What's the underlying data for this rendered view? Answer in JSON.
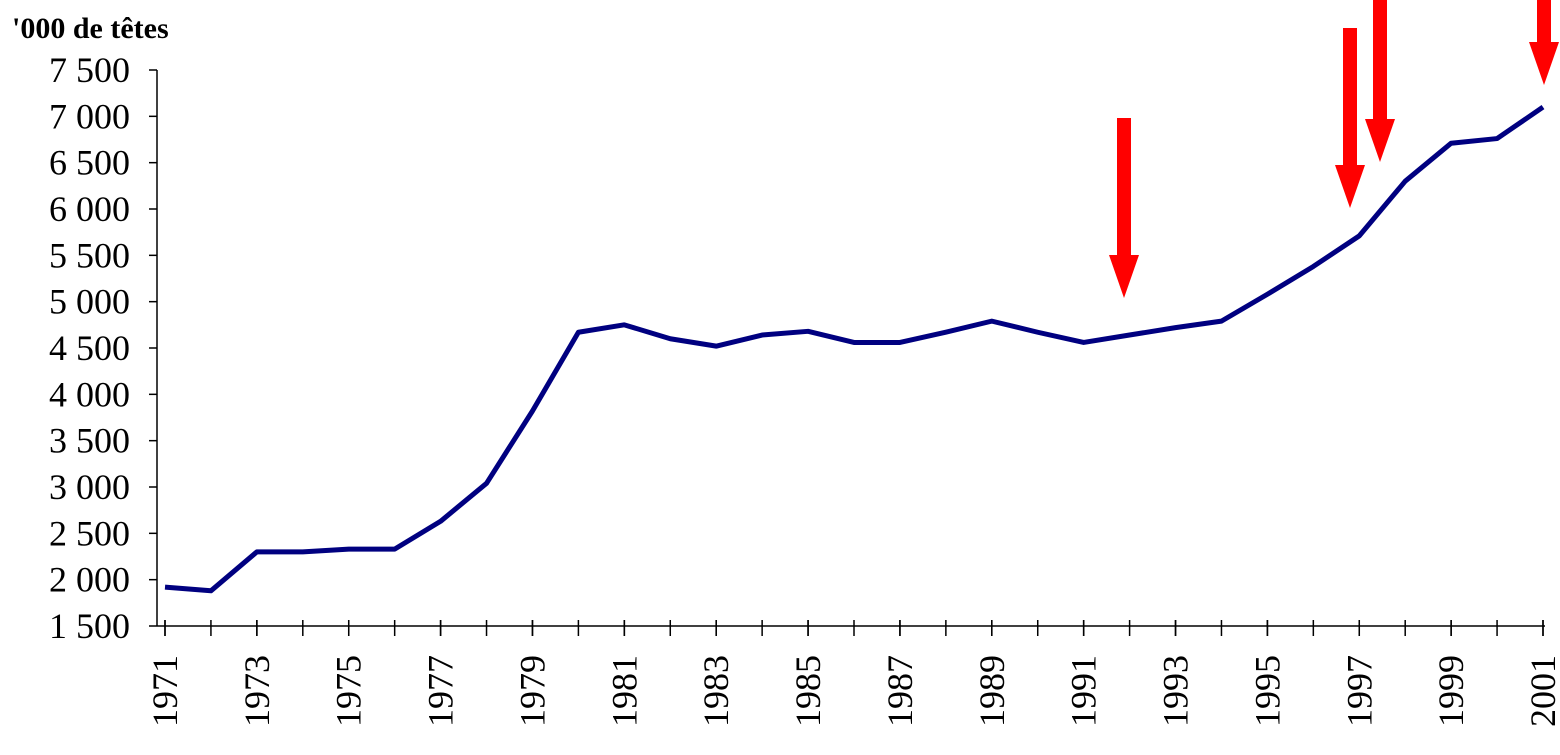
{
  "chart_data": {
    "type": "line",
    "title": "'000 de têtes",
    "x": [
      1971,
      1972,
      1973,
      1974,
      1975,
      1976,
      1977,
      1978,
      1979,
      1980,
      1981,
      1982,
      1983,
      1984,
      1985,
      1986,
      1987,
      1988,
      1989,
      1990,
      1991,
      1992,
      1993,
      1994,
      1995,
      1996,
      1997,
      1998,
      1999,
      2000,
      2001
    ],
    "series": [
      {
        "name": null,
        "color": "#000080",
        "values": [
          1920,
          1880,
          2300,
          2300,
          2330,
          2330,
          2630,
          3040,
          3820,
          4670,
          4750,
          4600,
          4520,
          4640,
          4680,
          4560,
          4560,
          4670,
          4790,
          4670,
          4560,
          4640,
          4720,
          4790,
          5080,
          5380,
          5710,
          6300,
          6710,
          6760,
          7100
        ]
      }
    ],
    "xlim": [
      1971,
      2001
    ],
    "xticks": [
      1971,
      1973,
      1975,
      1977,
      1979,
      1981,
      1983,
      1985,
      1987,
      1989,
      1991,
      1993,
      1995,
      1997,
      1999,
      2001
    ],
    "ylim": [
      1500,
      7500
    ],
    "yticks": [
      {
        "value": 1500,
        "label": "1 500"
      },
      {
        "value": 2000,
        "label": "2 000"
      },
      {
        "value": 2500,
        "label": "2 500"
      },
      {
        "value": 3000,
        "label": "3 000"
      },
      {
        "value": 3500,
        "label": "3 500"
      },
      {
        "value": 4000,
        "label": "4 000"
      },
      {
        "value": 4500,
        "label": "4 500"
      },
      {
        "value": 5000,
        "label": "5 000"
      },
      {
        "value": 5500,
        "label": "5 500"
      },
      {
        "value": 6000,
        "label": "6 000"
      },
      {
        "value": 6500,
        "label": "6 500"
      },
      {
        "value": 7000,
        "label": "7 000"
      },
      {
        "value": 7500,
        "label": "7 500"
      }
    ],
    "grid": false
  }
}
